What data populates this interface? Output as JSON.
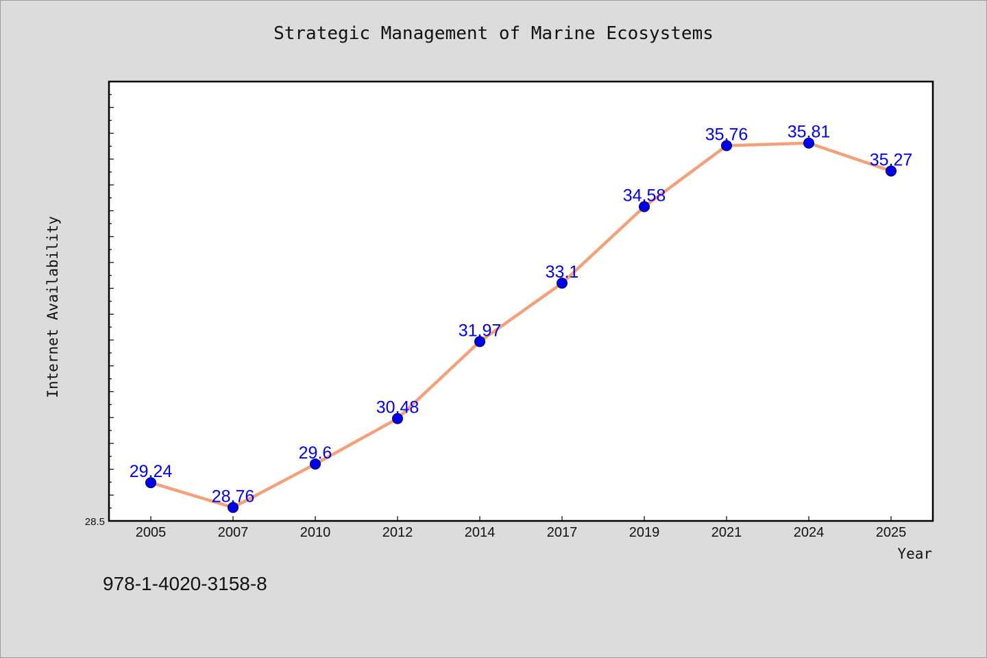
{
  "chart_data": {
    "type": "line",
    "title": "Strategic Management of Marine Ecosystems",
    "xlabel": "Year",
    "ylabel": "Internet Availability",
    "categories": [
      "2005",
      "2007",
      "2010",
      "2012",
      "2014",
      "2017",
      "2019",
      "2021",
      "2024",
      "2025"
    ],
    "series": [
      {
        "values": [
          29.24,
          28.76,
          29.6,
          30.48,
          31.97,
          33.1,
          34.58,
          35.76,
          35.81,
          35.27
        ]
      }
    ],
    "ylim": [
      28.5,
      37.0
    ],
    "ytick_label": "28.5",
    "grid": false,
    "line_color": "#f4a07a",
    "marker_color": "#0000ee",
    "label_color": "#0000ee"
  },
  "footer": {
    "text": "978-1-4020-3158-8"
  }
}
